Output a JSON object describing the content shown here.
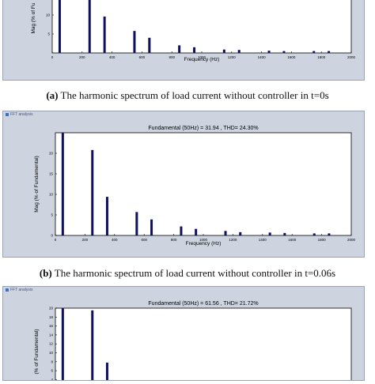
{
  "chart_data": [
    {
      "type": "bar",
      "panel_tag": "",
      "title": "",
      "xlabel": "Frequency (Hz)",
      "ylabel": "Mag (% of Fu",
      "xlim": [
        0,
        2000
      ],
      "ylim": [
        0,
        15
      ],
      "xticks": [
        "0",
        "200",
        "400",
        "600",
        "800",
        "1000",
        "1200",
        "1400",
        "1600",
        "1800",
        "2000"
      ],
      "yticks": [
        "10",
        "5"
      ],
      "x": [
        50,
        250,
        350,
        550,
        650,
        850,
        950,
        1150,
        1250,
        1450,
        1550,
        1750,
        1850
      ],
      "values": [
        14.5,
        14.5,
        9.6,
        5.8,
        4.0,
        2.0,
        1.5,
        0.9,
        0.8,
        0.6,
        0.5,
        0.5,
        0.5
      ],
      "bar_color": "#101060",
      "caption_label": "(a)",
      "caption_text": "The harmonic spectrum of load current without controller in t=0s"
    },
    {
      "type": "bar",
      "panel_tag": "FFT analysis",
      "title": "Fundamental (50Hz) = 31.94 , THD= 24.30%",
      "xlabel": "Frequency (Hz)",
      "ylabel": "Mag (% of Fundamental)",
      "xlim": [
        0,
        2000
      ],
      "ylim": [
        0,
        25
      ],
      "xticks": [
        "0",
        "200",
        "400",
        "600",
        "800",
        "1000",
        "1200",
        "1400",
        "1600",
        "1800",
        "2000"
      ],
      "yticks": [
        "0",
        "5",
        "10",
        "15",
        "20"
      ],
      "x": [
        50,
        250,
        350,
        550,
        650,
        850,
        950,
        1150,
        1250,
        1450,
        1550,
        1750,
        1850
      ],
      "values": [
        25,
        20.8,
        9.4,
        5.7,
        3.9,
        2.2,
        1.6,
        1.1,
        0.8,
        0.7,
        0.6,
        0.5,
        0.5
      ],
      "bar_color": "#101060",
      "caption_label": "(b)",
      "caption_text": "The harmonic spectrum of load current without controller in t=0.06s"
    },
    {
      "type": "bar",
      "panel_tag": "FFT analysis",
      "title": "Fundamental (50Hz) = 61.56 , THD= 21.72%",
      "xlabel": "",
      "ylabel": "(% of Fundamental)",
      "xlim": [
        0,
        2000
      ],
      "ylim": [
        0,
        20
      ],
      "xticks": [],
      "yticks": [
        "4",
        "6",
        "8",
        "10",
        "12",
        "14",
        "16",
        "18",
        "20"
      ],
      "x": [
        50,
        250,
        350
      ],
      "values": [
        20,
        19.5,
        7.8
      ],
      "bar_color": "#101060",
      "caption_label": "",
      "caption_text": ""
    }
  ]
}
